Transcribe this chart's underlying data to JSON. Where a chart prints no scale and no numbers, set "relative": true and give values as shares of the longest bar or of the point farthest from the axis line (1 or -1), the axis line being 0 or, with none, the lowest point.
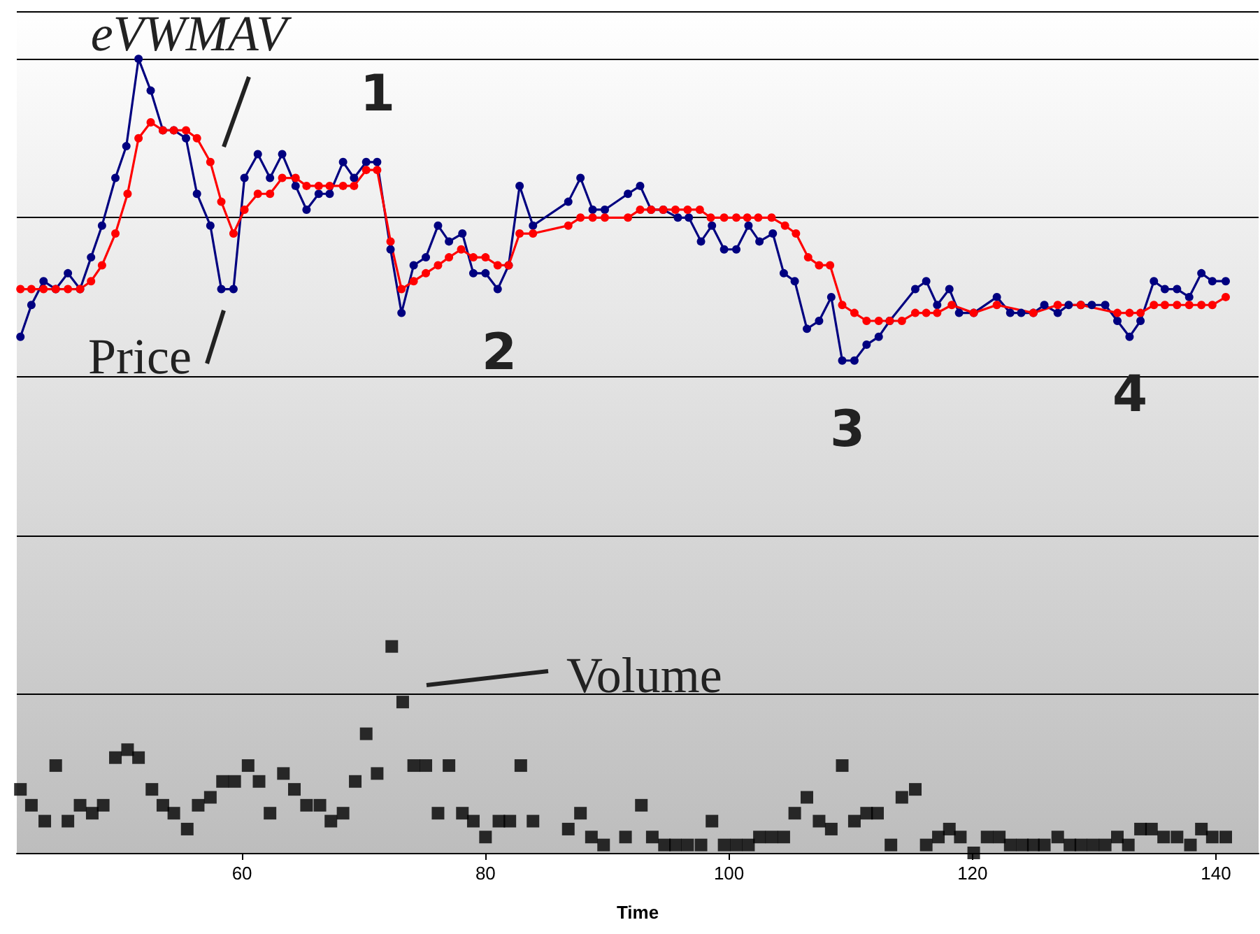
{
  "chart_data": {
    "type": "line",
    "xlabel": "Time",
    "relative": true,
    "grid": "y",
    "xlim": [
      41.5,
      143.5
    ],
    "xticks": [
      60,
      80,
      100,
      120,
      140
    ],
    "annotations": [
      "1",
      "2",
      "3",
      "4"
    ],
    "series": [
      {
        "name": "Price",
        "color": "#000080",
        "marker": "circle",
        "x": [
          41.8,
          42.7,
          43.7,
          44.7,
          45.7,
          46.7,
          47.6,
          48.5,
          49.6,
          50.5,
          51.5,
          52.5,
          53.5,
          54.4,
          55.4,
          56.3,
          57.4,
          58.3,
          59.3,
          60.2,
          61.3,
          62.3,
          63.3,
          64.4,
          65.3,
          66.3,
          67.2,
          68.3,
          69.2,
          70.2,
          71.1,
          72.2,
          73.1,
          74.1,
          75.1,
          76.1,
          77.0,
          78.1,
          79.0,
          80.0,
          81.0,
          81.9,
          82.8,
          83.9,
          86.8,
          87.8,
          88.8,
          89.8,
          91.7,
          92.7,
          93.6,
          94.6,
          95.8,
          96.7,
          97.7,
          98.6,
          99.6,
          100.6,
          101.6,
          102.5,
          103.6,
          104.5,
          105.4,
          106.4,
          107.4,
          108.4,
          109.3,
          110.3,
          111.3,
          112.3,
          113.2,
          115.3,
          116.2,
          117.1,
          118.1,
          118.9,
          120.1,
          122.0,
          123.1,
          124.0,
          125.0,
          125.9,
          127.0,
          127.9,
          128.9,
          129.8,
          130.9,
          131.9,
          132.9,
          133.8,
          134.9,
          135.8,
          136.8,
          137.8,
          138.8,
          139.7,
          140.8
        ],
        "values": [
          0.65,
          0.69,
          0.72,
          0.71,
          0.73,
          0.71,
          0.75,
          0.79,
          0.85,
          0.89,
          1,
          0.96,
          0.91,
          0.91,
          0.9,
          0.83,
          0.79,
          0.71,
          0.71,
          0.85,
          0.88,
          0.85,
          0.88,
          0.84,
          0.81,
          0.83,
          0.83,
          0.87,
          0.85,
          0.87,
          0.87,
          0.76,
          0.68,
          0.74,
          0.75,
          0.79,
          0.77,
          0.78,
          0.73,
          0.73,
          0.71,
          0.74,
          0.84,
          0.79,
          0.82,
          0.85,
          0.81,
          0.81,
          0.83,
          0.84,
          0.81,
          0.81,
          0.8,
          0.8,
          0.77,
          0.79,
          0.76,
          0.76,
          0.79,
          0.77,
          0.78,
          0.73,
          0.72,
          0.66,
          0.67,
          0.7,
          0.62,
          0.62,
          0.64,
          0.65,
          0.67,
          0.71,
          0.72,
          0.69,
          0.71,
          0.68,
          0.68,
          0.7,
          0.68,
          0.68,
          0.68,
          0.69,
          0.68,
          0.69,
          0.69,
          0.69,
          0.69,
          0.67,
          0.65,
          0.67,
          0.72,
          0.71,
          0.71,
          0.7,
          0.73,
          0.72,
          0.72
        ]
      },
      {
        "name": "eVWMAV",
        "color": "#ff0000",
        "marker": "circle",
        "x": [
          41.8,
          42.7,
          43.7,
          44.7,
          45.7,
          46.7,
          47.6,
          48.5,
          49.6,
          50.6,
          51.5,
          52.5,
          53.5,
          54.4,
          55.4,
          56.3,
          57.4,
          58.3,
          59.3,
          60.2,
          61.3,
          62.3,
          63.3,
          64.4,
          65.3,
          66.3,
          67.2,
          68.3,
          69.2,
          70.2,
          71.1,
          72.2,
          73.1,
          74.1,
          75.1,
          76.1,
          77.0,
          78.0,
          79.0,
          80.0,
          81.0,
          81.9,
          82.8,
          83.9,
          86.8,
          87.8,
          88.8,
          89.8,
          91.7,
          92.7,
          93.6,
          94.6,
          95.6,
          96.6,
          97.6,
          98.5,
          99.6,
          100.6,
          101.5,
          102.4,
          103.5,
          104.6,
          105.5,
          106.5,
          107.4,
          108.3,
          109.3,
          110.3,
          111.3,
          112.3,
          113.2,
          114.2,
          115.3,
          116.2,
          117.1,
          118.3,
          120.1,
          122.0,
          125.0,
          127.0,
          128.9,
          131.9,
          132.9,
          133.8,
          134.9,
          135.8,
          136.8,
          137.8,
          138.8,
          139.7,
          140.8
        ],
        "values": [
          0.71,
          0.71,
          0.71,
          0.71,
          0.71,
          0.71,
          0.72,
          0.74,
          0.78,
          0.83,
          0.9,
          0.92,
          0.91,
          0.91,
          0.91,
          0.9,
          0.87,
          0.82,
          0.78,
          0.81,
          0.83,
          0.83,
          0.85,
          0.85,
          0.84,
          0.84,
          0.84,
          0.84,
          0.84,
          0.86,
          0.86,
          0.77,
          0.71,
          0.72,
          0.73,
          0.74,
          0.75,
          0.76,
          0.75,
          0.75,
          0.74,
          0.74,
          0.78,
          0.78,
          0.79,
          0.8,
          0.8,
          0.8,
          0.8,
          0.81,
          0.81,
          0.81,
          0.81,
          0.81,
          0.81,
          0.8,
          0.8,
          0.8,
          0.8,
          0.8,
          0.8,
          0.79,
          0.78,
          0.75,
          0.74,
          0.74,
          0.69,
          0.68,
          0.67,
          0.67,
          0.67,
          0.67,
          0.68,
          0.68,
          0.68,
          0.69,
          0.68,
          0.69,
          0.68,
          0.69,
          0.69,
          0.68,
          0.68,
          0.68,
          0.69,
          0.69,
          0.69,
          0.69,
          0.69,
          0.69,
          0.7
        ]
      },
      {
        "name": "Volume",
        "type": "scatter",
        "color": "#000000",
        "marker": "square",
        "x": [
          41.8,
          42.7,
          43.8,
          44.7,
          45.7,
          46.7,
          47.7,
          48.6,
          49.6,
          50.6,
          51.5,
          52.6,
          53.5,
          54.4,
          55.5,
          56.4,
          57.4,
          58.4,
          59.4,
          60.5,
          61.4,
          62.3,
          63.4,
          64.3,
          65.3,
          66.4,
          67.3,
          68.3,
          69.3,
          70.2,
          71.1,
          72.3,
          73.2,
          74.1,
          75.1,
          76.1,
          77.0,
          78.1,
          79.0,
          80.0,
          81.1,
          82.0,
          82.9,
          83.9,
          86.8,
          87.8,
          88.7,
          89.7,
          91.5,
          92.8,
          93.7,
          94.7,
          95.6,
          96.6,
          97.7,
          98.6,
          99.6,
          100.6,
          101.6,
          102.5,
          103.5,
          104.5,
          105.4,
          106.4,
          107.4,
          108.4,
          109.3,
          110.3,
          111.3,
          112.2,
          113.3,
          114.2,
          115.3,
          116.2,
          117.2,
          118.1,
          119.0,
          120.1,
          121.2,
          122.2,
          123.1,
          124.1,
          125.0,
          125.9,
          127.0,
          128.0,
          128.9,
          129.9,
          130.9,
          131.9,
          132.8,
          133.8,
          134.7,
          135.7,
          136.8,
          137.9,
          138.8,
          139.7,
          140.8
        ],
        "values": [
          0.08,
          0.06,
          0.04,
          0.11,
          0.04,
          0.06,
          0.05,
          0.06,
          0.12,
          0.13,
          0.12,
          0.08,
          0.06,
          0.05,
          0.03,
          0.06,
          0.07,
          0.09,
          0.09,
          0.11,
          0.09,
          0.05,
          0.1,
          0.08,
          0.06,
          0.06,
          0.04,
          0.05,
          0.09,
          0.15,
          0.1,
          0.26,
          0.19,
          0.11,
          0.11,
          0.05,
          0.11,
          0.05,
          0.04,
          0.02,
          0.04,
          0.04,
          0.11,
          0.04,
          0.03,
          0.05,
          0.02,
          0.01,
          0.02,
          0.06,
          0.02,
          0.01,
          0.01,
          0.01,
          0.01,
          0.04,
          0.01,
          0.01,
          0.01,
          0.02,
          0.02,
          0.02,
          0.05,
          0.07,
          0.04,
          0.03,
          0.11,
          0.04,
          0.05,
          0.05,
          0.01,
          0.07,
          0.08,
          0.01,
          0.02,
          0.03,
          0.02,
          0,
          0.02,
          0.02,
          0.01,
          0.01,
          0.01,
          0.01,
          0.02,
          0.01,
          0.01,
          0.01,
          0.01,
          0.02,
          0.01,
          0.03,
          0.03,
          0.02,
          0.02,
          0.01,
          0.03,
          0.02,
          0.02
        ]
      }
    ]
  }
}
